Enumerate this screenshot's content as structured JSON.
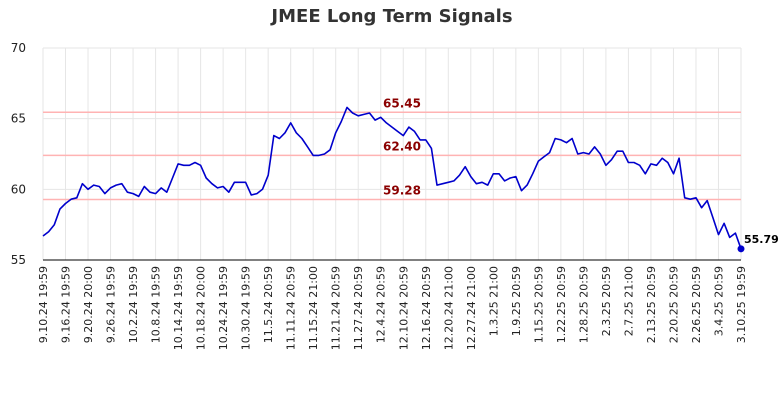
{
  "chart_data": {
    "type": "line",
    "title": "JMEE Long Term Signals",
    "ylim": [
      55,
      70
    ],
    "yticks": [
      "55",
      "60",
      "65",
      "70"
    ],
    "xticks": [
      "9.10.24 19:59",
      "9.16.24 19:59",
      "9.20.24 20:00",
      "9.26.24 19:59",
      "10.2.24 19:59",
      "10.8.24 19:59",
      "10.14.24 19:59",
      "10.18.24 20:00",
      "10.24.24 19:59",
      "10.30.24 19:59",
      "11.5.24 20:59",
      "11.11.24 20:59",
      "11.15.24 21:00",
      "11.21.24 20:59",
      "11.27.24 20:59",
      "12.4.24 20:59",
      "12.10.24 20:59",
      "12.16.24 20:59",
      "12.20.24 21:00",
      "12.27.24 21:00",
      "1.3.25 21:00",
      "1.9.25 20:59",
      "1.15.25 20:59",
      "1.22.25 20:59",
      "1.28.25 20:59",
      "2.3.25 20:59",
      "2.7.25 21:00",
      "2.13.25 20:59",
      "2.20.25 20:59",
      "2.26.25 20:59",
      "3.4.25 20:59",
      "3.10.25 19:59"
    ],
    "grid": true,
    "reference_lines": [
      {
        "value": 65.45,
        "label": "65.45"
      },
      {
        "value": 62.4,
        "label": "62.40"
      },
      {
        "value": 59.28,
        "label": "59.28"
      }
    ],
    "last_value_label": "55.79",
    "colors": {
      "line": "#0000cc",
      "reference": "#ffb3b3",
      "reference_text": "#8b0000",
      "grid": "#e6e6e6"
    },
    "series": [
      {
        "values": [
          56.7,
          57.0,
          57.5,
          58.6,
          59.0,
          59.3,
          59.4,
          60.4,
          60.0,
          60.3,
          60.2,
          59.7,
          60.1,
          60.3,
          60.4,
          59.8,
          59.7,
          59.5,
          60.2,
          59.8,
          59.7,
          60.1,
          59.8,
          60.8,
          61.8,
          61.7,
          61.7,
          61.9,
          61.7,
          60.8,
          60.4,
          60.1,
          60.2,
          59.8,
          60.5,
          60.5,
          60.5,
          59.6,
          59.7,
          60.0,
          61.0,
          63.8,
          63.6,
          64.0,
          64.7,
          64.0,
          63.6,
          63.0,
          62.4,
          62.4,
          62.5,
          62.8,
          64.0,
          64.8,
          65.8,
          65.4,
          65.2,
          65.3,
          65.4,
          64.9,
          65.1,
          64.7,
          64.4,
          64.1,
          63.8,
          64.4,
          64.1,
          63.5,
          63.5,
          62.9,
          60.3,
          60.4,
          60.5,
          60.6,
          61.0,
          61.6,
          60.9,
          60.4,
          60.5,
          60.3,
          61.1,
          61.1,
          60.6,
          60.8,
          60.9,
          59.9,
          60.3,
          61.1,
          62.0,
          62.3,
          62.6,
          63.6,
          63.5,
          63.3,
          63.6,
          62.5,
          62.6,
          62.5,
          63.0,
          62.5,
          61.7,
          62.1,
          62.7,
          62.7,
          61.9,
          61.9,
          61.7,
          61.1,
          61.8,
          61.7,
          62.2,
          61.9,
          61.1,
          62.2,
          59.4,
          59.3,
          59.4,
          58.7,
          59.2,
          58.0,
          56.8,
          57.6,
          56.6,
          56.9,
          55.79
        ]
      }
    ]
  }
}
